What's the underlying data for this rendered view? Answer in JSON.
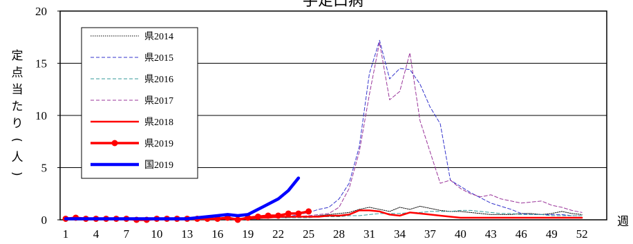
{
  "chart_data": {
    "type": "line",
    "title": "手足口病",
    "ylabel": "定点当たり(人)",
    "xlabel": "週",
    "ylim": [
      0,
      20
    ],
    "yticks": [
      0,
      5,
      10,
      15,
      20
    ],
    "xticks": [
      1,
      4,
      7,
      10,
      13,
      16,
      19,
      22,
      25,
      28,
      31,
      34,
      37,
      40,
      43,
      46,
      49,
      52
    ],
    "grid": "horizontal",
    "legend_position": "top-left",
    "series": [
      {
        "name": "県2014",
        "color": "#000000",
        "style": "dotted",
        "x": [
          1,
          2,
          3,
          4,
          5,
          6,
          7,
          8,
          9,
          10,
          11,
          12,
          13,
          14,
          15,
          16,
          17,
          18,
          19,
          20,
          21,
          22,
          23,
          24,
          25,
          26,
          27,
          28,
          29,
          30,
          31,
          32,
          33,
          34,
          35,
          36,
          37,
          38,
          39,
          40,
          41,
          42,
          43,
          44,
          45,
          46,
          47,
          48,
          49,
          50,
          51,
          52
        ],
        "values": [
          0.1,
          0.1,
          0.1,
          0.1,
          0.1,
          0.1,
          0.1,
          0.1,
          0.1,
          0.1,
          0.1,
          0.1,
          0.1,
          0.1,
          0.1,
          0.1,
          0.1,
          0.1,
          0.1,
          0.2,
          0.2,
          0.2,
          0.2,
          0.3,
          0.3,
          0.4,
          0.5,
          0.6,
          0.7,
          1.0,
          1.2,
          1.0,
          0.8,
          1.2,
          1.0,
          1.3,
          1.1,
          0.9,
          0.8,
          0.8,
          0.7,
          0.6,
          0.5,
          0.5,
          0.5,
          0.6,
          0.6,
          0.5,
          0.6,
          0.8,
          0.6,
          0.5
        ]
      },
      {
        "name": "県2015",
        "color": "#3333cc",
        "style": "dashed",
        "x": [
          1,
          2,
          3,
          4,
          5,
          6,
          7,
          8,
          9,
          10,
          11,
          12,
          13,
          14,
          15,
          16,
          17,
          18,
          19,
          20,
          21,
          22,
          23,
          24,
          25,
          26,
          27,
          28,
          29,
          30,
          31,
          32,
          33,
          34,
          35,
          36,
          37,
          38,
          39,
          40,
          41,
          42,
          43,
          44,
          45,
          46,
          47,
          48,
          49,
          50,
          51,
          52
        ],
        "values": [
          0.1,
          0.1,
          0.1,
          0.1,
          0.1,
          0.1,
          0.1,
          0.1,
          0.1,
          0.1,
          0.1,
          0.1,
          0.1,
          0.1,
          0.1,
          0.1,
          0.1,
          0.1,
          0.2,
          0.2,
          0.2,
          0.3,
          0.3,
          0.5,
          0.7,
          1.0,
          1.2,
          2.0,
          3.5,
          7.0,
          14.0,
          17.2,
          13.5,
          14.5,
          14.4,
          13.0,
          10.8,
          9.2,
          3.8,
          3.2,
          2.6,
          2.1,
          1.6,
          1.3,
          1.0,
          0.6,
          0.5,
          0.5,
          0.5,
          0.5,
          0.4,
          0.4
        ]
      },
      {
        "name": "県2016",
        "color": "#339999",
        "style": "dashed",
        "x": [
          1,
          2,
          3,
          4,
          5,
          6,
          7,
          8,
          9,
          10,
          11,
          12,
          13,
          14,
          15,
          16,
          17,
          18,
          19,
          20,
          21,
          22,
          23,
          24,
          25,
          26,
          27,
          28,
          29,
          30,
          31,
          32,
          33,
          34,
          35,
          36,
          37,
          38,
          39,
          40,
          41,
          42,
          43,
          44,
          45,
          46,
          47,
          48,
          49,
          50,
          51,
          52
        ],
        "values": [
          0.1,
          0.1,
          0.1,
          0.1,
          0.1,
          0.1,
          0.1,
          0.1,
          0.1,
          0.1,
          0.1,
          0.1,
          0.1,
          0.1,
          0.1,
          0.1,
          0.1,
          0.1,
          0.1,
          0.1,
          0.2,
          0.2,
          0.2,
          0.2,
          0.2,
          0.3,
          0.3,
          0.3,
          0.4,
          0.4,
          0.5,
          0.6,
          0.6,
          0.6,
          0.7,
          0.7,
          0.8,
          0.8,
          0.8,
          0.9,
          0.9,
          0.8,
          0.7,
          0.6,
          0.6,
          0.5,
          0.5,
          0.5,
          0.4,
          0.4,
          0.4,
          0.4
        ]
      },
      {
        "name": "県2017",
        "color": "#993399",
        "style": "dashed",
        "x": [
          1,
          2,
          3,
          4,
          5,
          6,
          7,
          8,
          9,
          10,
          11,
          12,
          13,
          14,
          15,
          16,
          17,
          18,
          19,
          20,
          21,
          22,
          23,
          24,
          25,
          26,
          27,
          28,
          29,
          30,
          31,
          32,
          33,
          34,
          35,
          36,
          37,
          38,
          39,
          40,
          41,
          42,
          43,
          44,
          45,
          46,
          47,
          48,
          49,
          50,
          51,
          52
        ],
        "values": [
          0.1,
          0.1,
          0.1,
          0.1,
          0.1,
          0.1,
          0.1,
          0.1,
          0.1,
          0.1,
          0.1,
          0.1,
          0.1,
          0.1,
          0.1,
          0.1,
          0.1,
          0.1,
          0.1,
          0.2,
          0.2,
          0.2,
          0.3,
          0.3,
          0.4,
          0.5,
          0.6,
          1.2,
          3.0,
          6.5,
          12.0,
          17.0,
          11.5,
          12.3,
          16.0,
          9.5,
          6.5,
          3.5,
          3.8,
          3.0,
          2.5,
          2.2,
          2.4,
          2.0,
          1.8,
          1.6,
          1.7,
          1.8,
          1.4,
          1.2,
          0.9,
          0.7
        ]
      },
      {
        "name": "県2018",
        "color": "#ff0000",
        "style": "solid",
        "x": [
          1,
          2,
          3,
          4,
          5,
          6,
          7,
          8,
          9,
          10,
          11,
          12,
          13,
          14,
          15,
          16,
          17,
          18,
          19,
          20,
          21,
          22,
          23,
          24,
          25,
          26,
          27,
          28,
          29,
          30,
          31,
          32,
          33,
          34,
          35,
          36,
          37,
          38,
          39,
          40,
          41,
          42,
          43,
          44,
          45,
          46,
          47,
          48,
          49,
          50,
          51,
          52
        ],
        "values": [
          0.1,
          0.1,
          0.1,
          0.1,
          0.1,
          0.1,
          0.1,
          0.1,
          0.1,
          0.1,
          0.1,
          0.1,
          0.1,
          0.1,
          0.1,
          0.1,
          0.1,
          0.1,
          0.1,
          0.2,
          0.2,
          0.3,
          0.3,
          0.3,
          0.3,
          0.3,
          0.4,
          0.4,
          0.5,
          0.9,
          0.9,
          0.8,
          0.5,
          0.4,
          0.7,
          0.6,
          0.5,
          0.4,
          0.3,
          0.2,
          0.2,
          0.2,
          0.2,
          0.2,
          0.2,
          0.2,
          0.2,
          0.2,
          0.2,
          0.2,
          0.2,
          0.2
        ]
      },
      {
        "name": "県2019",
        "color": "#ff0000",
        "style": "solid-markers",
        "x": [
          1,
          2,
          3,
          4,
          5,
          6,
          7,
          8,
          9,
          10,
          11,
          12,
          13,
          14,
          15,
          16,
          17,
          18,
          19,
          20,
          21,
          22,
          23,
          24,
          25
        ],
        "values": [
          0.1,
          0.2,
          0.1,
          0.1,
          0.1,
          0.1,
          0.1,
          0.0,
          0.0,
          0.1,
          0.1,
          0.1,
          0.1,
          0.1,
          0.1,
          0.1,
          0.2,
          0.0,
          0.2,
          0.3,
          0.4,
          0.4,
          0.6,
          0.6,
          0.8
        ]
      },
      {
        "name": "国2019",
        "color": "#0000ff",
        "style": "solid-thick",
        "x": [
          1,
          2,
          3,
          4,
          5,
          6,
          7,
          8,
          9,
          10,
          11,
          12,
          13,
          14,
          15,
          16,
          17,
          18,
          19,
          20,
          21,
          22,
          23,
          24
        ],
        "values": [
          0.1,
          0.1,
          0.1,
          0.1,
          0.1,
          0.1,
          0.1,
          0.1,
          0.1,
          0.1,
          0.1,
          0.1,
          0.1,
          0.2,
          0.3,
          0.4,
          0.5,
          0.4,
          0.5,
          1.0,
          1.5,
          2.0,
          2.8,
          4.0
        ]
      }
    ]
  }
}
